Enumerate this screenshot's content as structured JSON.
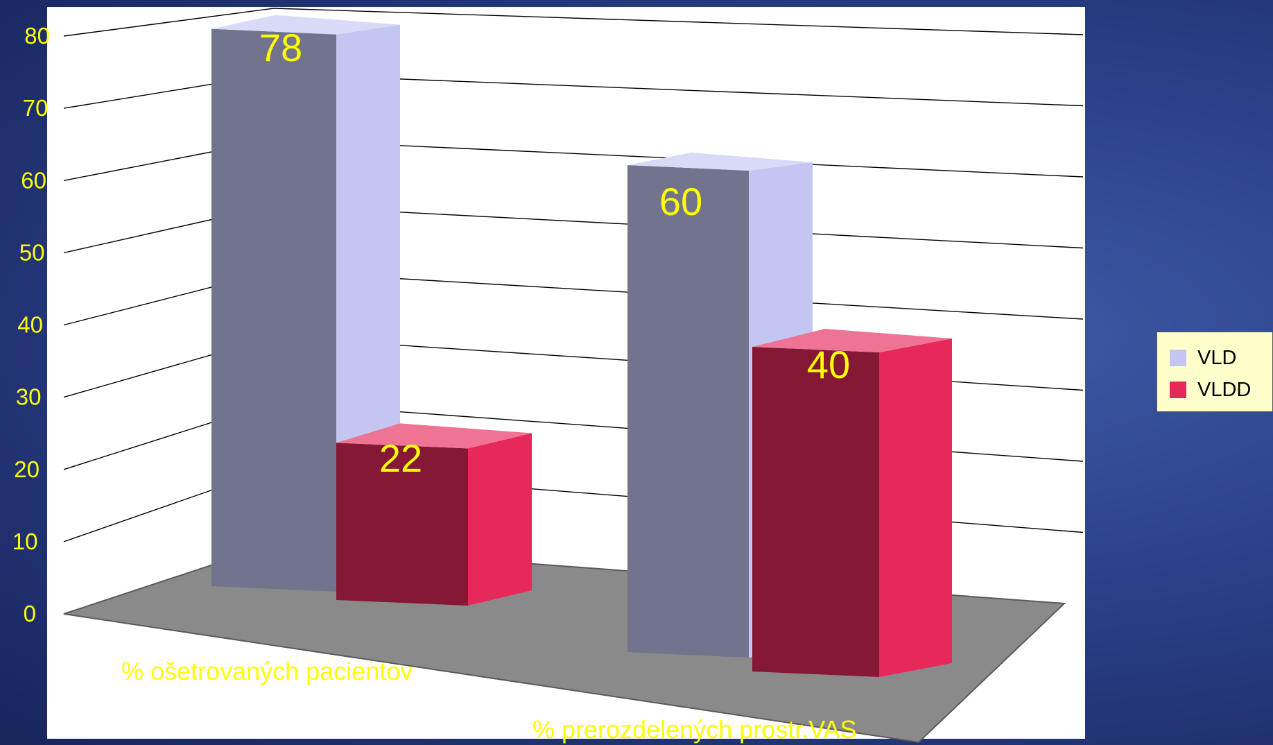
{
  "chart_data": {
    "type": "bar",
    "style": "3d-clustered-column",
    "categories": [
      "% ošetrovaných pacientov",
      "% prerozdelených prostr.VAS"
    ],
    "series": [
      {
        "name": "VLD",
        "values": [
          78,
          60
        ],
        "color": "#c4c6f2"
      },
      {
        "name": "VLDD",
        "values": [
          22,
          40
        ],
        "color": "#e6295a"
      }
    ],
    "data_labels": [
      "78",
      "22",
      "60",
      "40"
    ],
    "y_ticks": [
      "0",
      "10",
      "20",
      "30",
      "40",
      "50",
      "60",
      "70",
      "80"
    ],
    "ylim": [
      0,
      80
    ],
    "grid": true,
    "legend": "right",
    "title": "",
    "xlabel": "",
    "ylabel": ""
  },
  "colors": {
    "background": "#2a4088",
    "plot_area": "#ffffff",
    "floor": "#8a8a8a",
    "text": "#ffff00",
    "legend_bg": "#ffffcc"
  }
}
